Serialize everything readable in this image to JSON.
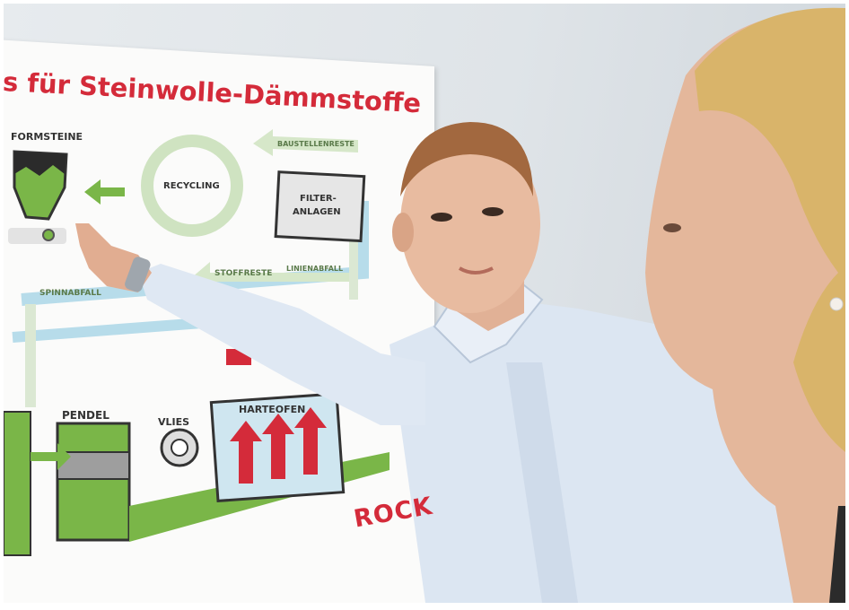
{
  "poster": {
    "title": "s für Steinwolle-Dämmstoffe",
    "labels": {
      "formsteine": "FORMSTEINE",
      "recycling": "RECYCLING",
      "baustellenreste": "BAUSTELLENRESTE",
      "filteranlagen_1": "FILTER-",
      "filteranlagen_2": "ANLAGEN",
      "stoffreste": "STOFFRESTE",
      "linienabfall": "LINIENABFALL",
      "spinnabfall": "SPINNABFALL",
      "pendel": "PENDEL",
      "vlies": "VLIES",
      "harteofen": "HARTEOFEN"
    },
    "logo": "ROCK",
    "colors": {
      "title": "#d42b3a",
      "green": "#7ab648",
      "red_arrow": "#d42b3a",
      "pipe_blue": "#b7dcea"
    }
  },
  "people": {
    "man": {
      "shirt_color": "#dce6f2"
    },
    "woman": {
      "hair_color": "#d9b46a"
    }
  }
}
